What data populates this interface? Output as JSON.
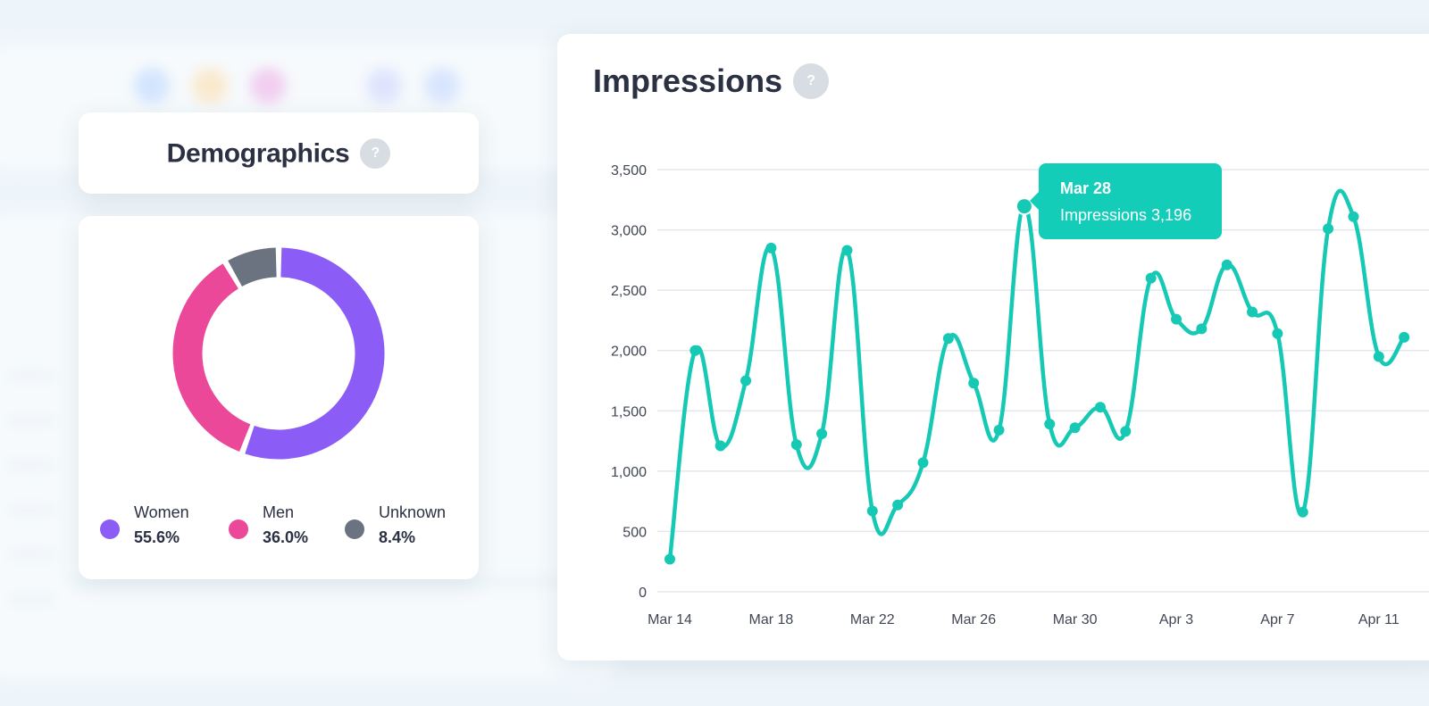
{
  "colors": {
    "women": "#8b5cf6",
    "men": "#ec4899",
    "unknown": "#6b7280",
    "line": "#16c9b4"
  },
  "demographics": {
    "title": "Demographics",
    "help_icon": "?",
    "legend": [
      {
        "label": "Women",
        "value": "55.6%",
        "pct": 55.6,
        "color_key": "women"
      },
      {
        "label": "Men",
        "value": "36.0%",
        "pct": 36.0,
        "color_key": "men"
      },
      {
        "label": "Unknown",
        "value": "8.4%",
        "pct": 8.4,
        "color_key": "unknown"
      }
    ]
  },
  "impressions": {
    "title": "Impressions",
    "help_icon": "?",
    "tooltip": {
      "date": "Mar 28",
      "text": "Impressions 3,196"
    }
  },
  "chart_data": [
    {
      "type": "pie",
      "title": "Demographics",
      "categories": [
        "Women",
        "Men",
        "Unknown"
      ],
      "values": [
        55.6,
        36.0,
        8.4
      ]
    },
    {
      "type": "line",
      "title": "Impressions",
      "x": [
        "Mar 14",
        "Mar 15",
        "Mar 16",
        "Mar 17",
        "Mar 18",
        "Mar 19",
        "Mar 20",
        "Mar 21",
        "Mar 22",
        "Mar 23",
        "Mar 24",
        "Mar 25",
        "Mar 26",
        "Mar 27",
        "Mar 28",
        "Mar 29",
        "Mar 30",
        "Mar 31",
        "Apr 1",
        "Apr 2",
        "Apr 3",
        "Apr 4",
        "Apr 5",
        "Apr 6",
        "Apr 7",
        "Apr 8",
        "Apr 9",
        "Apr 10",
        "Apr 11",
        "Apr 12"
      ],
      "series": [
        {
          "name": "Impressions",
          "values": [
            270,
            2000,
            1210,
            1750,
            2850,
            1220,
            1310,
            2830,
            670,
            720,
            1070,
            2100,
            1730,
            1340,
            3196,
            1390,
            1360,
            1530,
            1330,
            2600,
            2260,
            2180,
            2710,
            2320,
            2140,
            660,
            3010,
            3110,
            1950,
            2110
          ]
        }
      ],
      "x_tick_labels": [
        "Mar 14",
        "Mar 18",
        "Mar 22",
        "Mar 26",
        "Mar 30",
        "Apr 3",
        "Apr 7",
        "Apr 11"
      ],
      "y_tick_labels": [
        "0",
        "500",
        "1,000",
        "1,500",
        "2,000",
        "2,500",
        "3,000",
        "3,500"
      ],
      "y_ticks": [
        0,
        500,
        1000,
        1500,
        2000,
        2500,
        3000,
        3500
      ],
      "ylim": [
        0,
        3500
      ],
      "grid": true
    }
  ]
}
